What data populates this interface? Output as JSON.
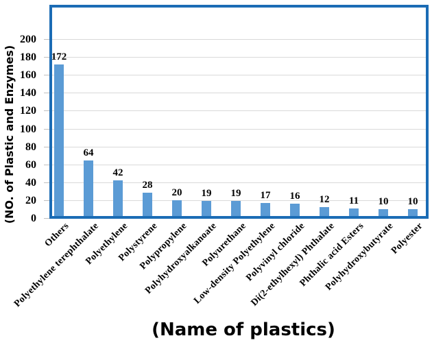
{
  "chart_data": {
    "type": "bar",
    "title": "",
    "xlabel": "(Name of plastics)",
    "ylabel": "(NO. of Plastic and Enzymes)",
    "categories": [
      "Others",
      "Polyethylene terephthalate",
      "Polyethylene",
      "Polystyrene",
      "Polypropylene",
      "Polyhydroxyalkanoate",
      "Polyurethane",
      "Low-density Polyethylene",
      "Polyvinyl chloride",
      "Di(2-ethylhexyl) Phthalate",
      "Phthalic acid Esters",
      "Polyhydroxybutyrate",
      "Polyester"
    ],
    "values": [
      172,
      64,
      42,
      28,
      20,
      19,
      19,
      17,
      16,
      12,
      11,
      10,
      10
    ],
    "yticks": [
      0,
      20,
      40,
      60,
      80,
      100,
      120,
      140,
      160,
      180,
      200
    ],
    "ylim": [
      0,
      238
    ],
    "grid": "horizontal-only",
    "legend": "none",
    "bar_color": "#5b9bd5",
    "border_color": "#1b6cb5",
    "gridline_color": "#d9d9d9",
    "tick_stub_color": "#bfbfbf",
    "text_color": "#000000"
  }
}
